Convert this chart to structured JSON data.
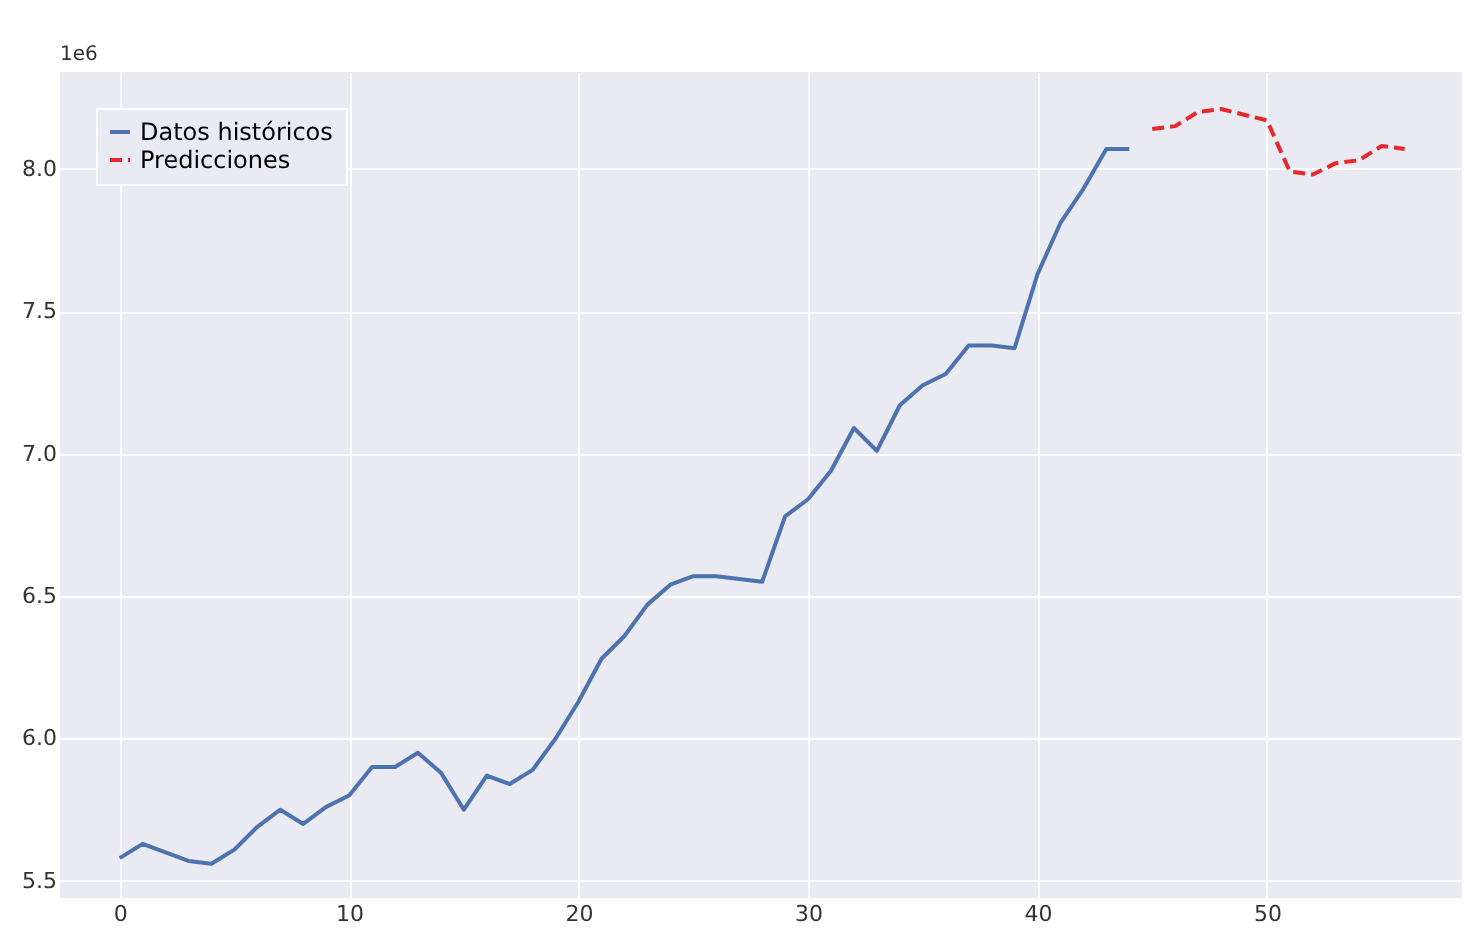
{
  "chart_data": {
    "type": "line",
    "annotations": [
      "1e6"
    ],
    "xlim": [
      -2.6,
      58.5
    ],
    "ylim": [
      5.44,
      8.34
    ],
    "xticks": [
      0,
      10,
      20,
      30,
      40,
      50
    ],
    "yticks": [
      5.5,
      {
        "value": 6,
        "label": "6.0"
      },
      6.5,
      {
        "value": 7,
        "label": "7.0"
      },
      7.5,
      {
        "value": 8,
        "label": "8.0"
      }
    ],
    "grid": true,
    "legend": "top left",
    "marker": "none",
    "series": [
      {
        "name": "Datos históricos",
        "color": "#4c72b0",
        "line_style": "solid",
        "x": [
          0,
          1,
          2,
          3,
          4,
          5,
          6,
          7,
          8,
          9,
          10,
          11,
          12,
          13,
          14,
          15,
          16,
          17,
          18,
          19,
          20,
          21,
          22,
          23,
          24,
          25,
          26,
          27,
          28,
          29,
          30,
          31,
          32,
          33,
          34,
          35,
          36,
          37,
          38,
          39,
          40,
          41,
          42,
          43,
          44
        ],
        "values": [
          5.58,
          5.63,
          5.6,
          5.57,
          5.56,
          5.61,
          5.69,
          5.75,
          5.7,
          5.76,
          5.8,
          5.9,
          5.9,
          5.95,
          5.88,
          5.75,
          5.87,
          5.84,
          5.89,
          6.0,
          6.13,
          6.28,
          6.36,
          6.47,
          6.54,
          6.57,
          6.57,
          6.56,
          6.55,
          6.78,
          6.84,
          6.94,
          7.09,
          7.01,
          7.17,
          7.24,
          7.28,
          7.38,
          7.38,
          7.37,
          7.63,
          7.81,
          7.93,
          8.07,
          8.07
        ]
      },
      {
        "name": "Predicciones",
        "color": "#e8272b",
        "line_style": "dashed",
        "x": [
          45,
          46,
          47,
          48,
          49,
          50,
          51,
          52,
          53,
          54,
          55,
          56
        ],
        "values": [
          8.14,
          8.15,
          8.2,
          8.21,
          8.19,
          8.17,
          7.99,
          7.98,
          8.02,
          8.03,
          8.08,
          8.07
        ]
      }
    ]
  }
}
